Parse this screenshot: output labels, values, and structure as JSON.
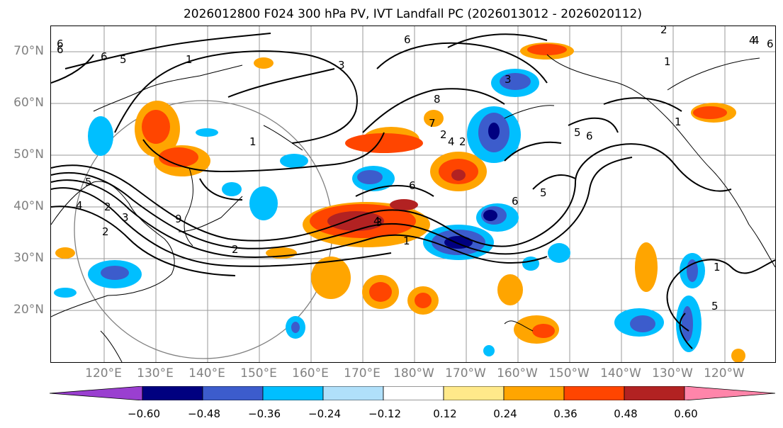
{
  "title": "2026012800 F024 300 hPa PV, IVT Landfall PC (2026013012 - 2026020112)",
  "lat_labels": [
    "70°N",
    "60°N",
    "50°N",
    "40°N",
    "30°N",
    "20°N"
  ],
  "lon_labels": [
    "120°E",
    "130°E",
    "140°E",
    "150°E",
    "160°E",
    "170°E",
    "180°W",
    "170°W",
    "160°W",
    "150°W",
    "140°W",
    "130°W",
    "120°W"
  ],
  "colorbar": {
    "colors": [
      "#9a3fd0",
      "#000080",
      "#3c5ccc",
      "#00bfff",
      "#b0e0fa",
      "#ffffff",
      "#ffe98a",
      "#ffa500",
      "#ff4500",
      "#b22222",
      "#ff85aa"
    ],
    "ticks": [
      "−0.60",
      "−0.48",
      "−0.36",
      "−0.24",
      "−0.12",
      "0.12",
      "0.24",
      "0.36",
      "0.48",
      "0.60"
    ]
  },
  "contour_labels": [
    "6",
    "6",
    "5",
    "1",
    "3",
    "6",
    "8",
    "7",
    "2",
    "4",
    "2",
    "3",
    "4",
    "1",
    "5",
    "6",
    "6",
    "5",
    "6",
    "4",
    "3",
    "1",
    "2",
    "2",
    "5",
    "4",
    "2",
    "3",
    "1",
    "9",
    "5",
    "1",
    "6",
    "4",
    "2",
    "1",
    "6"
  ]
}
